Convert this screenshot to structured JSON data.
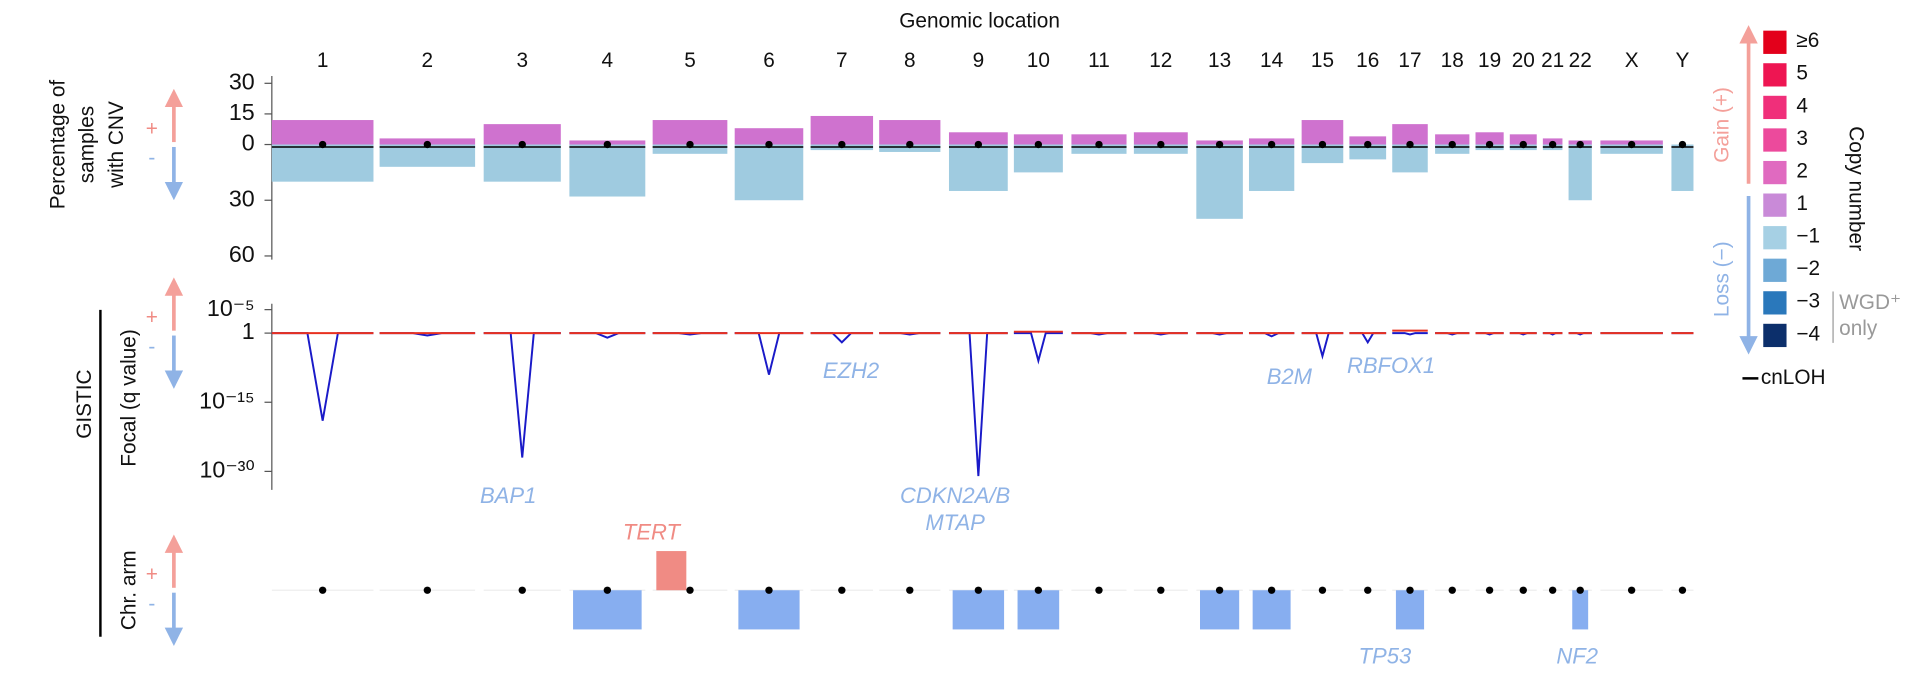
{
  "title": "Genomic location",
  "chromosomes": [
    "1",
    "2",
    "3",
    "4",
    "5",
    "6",
    "7",
    "8",
    "9",
    "10",
    "11",
    "12",
    "13",
    "14",
    "15",
    "16",
    "17",
    "18",
    "19",
    "20",
    "21",
    "22",
    "X",
    "Y"
  ],
  "cnv": {
    "type": "bar",
    "ylabel": [
      "Percentage of",
      "samples",
      "with CNV"
    ],
    "gain_lim": [
      0,
      30
    ],
    "gain_ticks": [
      0,
      15,
      30
    ],
    "loss_lim": [
      0,
      60
    ],
    "loss_ticks": [
      30,
      60
    ],
    "series": [
      {
        "color": "#cf72cf",
        "values": [
          12,
          3,
          10,
          2,
          12,
          8,
          14,
          12,
          6,
          5,
          5,
          6,
          2,
          3,
          12,
          4,
          10,
          5,
          6,
          5,
          3,
          2,
          2,
          0
        ]
      },
      {
        "color": "#9fcbe0",
        "values": [
          20,
          12,
          20,
          28,
          5,
          30,
          3,
          4,
          25,
          15,
          5,
          5,
          40,
          25,
          10,
          8,
          15,
          5,
          3,
          3,
          3,
          30,
          5,
          25
        ]
      }
    ]
  },
  "gistic": {
    "type": "line",
    "log": true,
    "label": "GISTIC",
    "ylabel": "Focal (q value)",
    "amp_lim": [
      1,
      1e-06
    ],
    "amp_ticks": [
      {
        "value": 1e-05,
        "label": "10⁻⁵"
      }
    ],
    "del_lim": [
      1,
      1e-34
    ],
    "del_ticks": [
      {
        "value": 1,
        "label": "1"
      },
      {
        "value": 1e-15,
        "label": "10⁻¹⁵"
      },
      {
        "value": 1e-30,
        "label": "10⁻³⁰"
      }
    ],
    "series": [
      {
        "color": "#e8311f",
        "values": [
          1,
          1,
          1,
          1,
          1,
          1,
          1,
          1,
          1,
          0.5,
          1,
          1,
          1,
          1,
          1,
          1,
          0.3,
          1,
          1,
          1,
          1,
          1,
          1,
          1
        ]
      },
      {
        "color": "#1a1ac8",
        "values": [
          1e-19,
          0.3,
          1e-27,
          0.1,
          0.5,
          1e-09,
          0.01,
          0.5,
          1e-31,
          1e-06,
          0.5,
          0.5,
          0.5,
          0.2,
          1e-05,
          0.01,
          0.5,
          0.5,
          0.5,
          0.5,
          0.5,
          0.5,
          1,
          1
        ]
      }
    ]
  },
  "genes": [
    {
      "label": "BAP1",
      "color": "#8fb3e6"
    },
    {
      "label": "EZH2",
      "color": "#8fb3e6"
    },
    {
      "label": "CDKN2A/B",
      "color": "#8fb3e6"
    },
    {
      "label": "MTAP",
      "color": "#8fb3e6"
    },
    {
      "label": "B2M",
      "color": "#8fb3e6"
    },
    {
      "label": "RBFOX1",
      "color": "#8fb3e6"
    },
    {
      "label": "TERT",
      "color": "#f08b84"
    },
    {
      "label": "TP53",
      "color": "#8fb3e6"
    },
    {
      "label": "NF2",
      "color": "#8fb3e6"
    }
  ],
  "arm": {
    "type": "bar",
    "ylabel": "Chr. arm",
    "gain_color": "#f08b84",
    "loss_color": "#87aef0",
    "gain": [
      0,
      0,
      0,
      0,
      1,
      0,
      0,
      0,
      0,
      0,
      0,
      0,
      0,
      0,
      0,
      0,
      0,
      0,
      0,
      0,
      0,
      0,
      0,
      0
    ],
    "loss": [
      0,
      0,
      0,
      1,
      0,
      1,
      0,
      0,
      1,
      1,
      0,
      0,
      1,
      1,
      0,
      0,
      1,
      0,
      0,
      0,
      0,
      1,
      0,
      0
    ]
  },
  "signs": {
    "plus": "+",
    "minus": "-"
  },
  "legend": {
    "title": "Copy number",
    "gain": "Gain (+)",
    "loss": "Loss (−)",
    "wgd": [
      "WGD⁺",
      "only"
    ],
    "cnloh": "cnLOH",
    "items": [
      {
        "label": "≥6",
        "color": "#e3001b"
      },
      {
        "label": "5",
        "color": "#ee1552"
      },
      {
        "label": "4",
        "color": "#f02f7a"
      },
      {
        "label": "3",
        "color": "#ec4a9c"
      },
      {
        "label": "2",
        "color": "#e06ac0"
      },
      {
        "label": "1",
        "color": "#c98ad8"
      },
      {
        "label": "−1",
        "color": "#a6d0e4"
      },
      {
        "label": "−2",
        "color": "#6ea9d6"
      },
      {
        "label": "−3",
        "color": "#2a78bb"
      },
      {
        "label": "−4",
        "color": "#0c2f6b"
      }
    ]
  }
}
